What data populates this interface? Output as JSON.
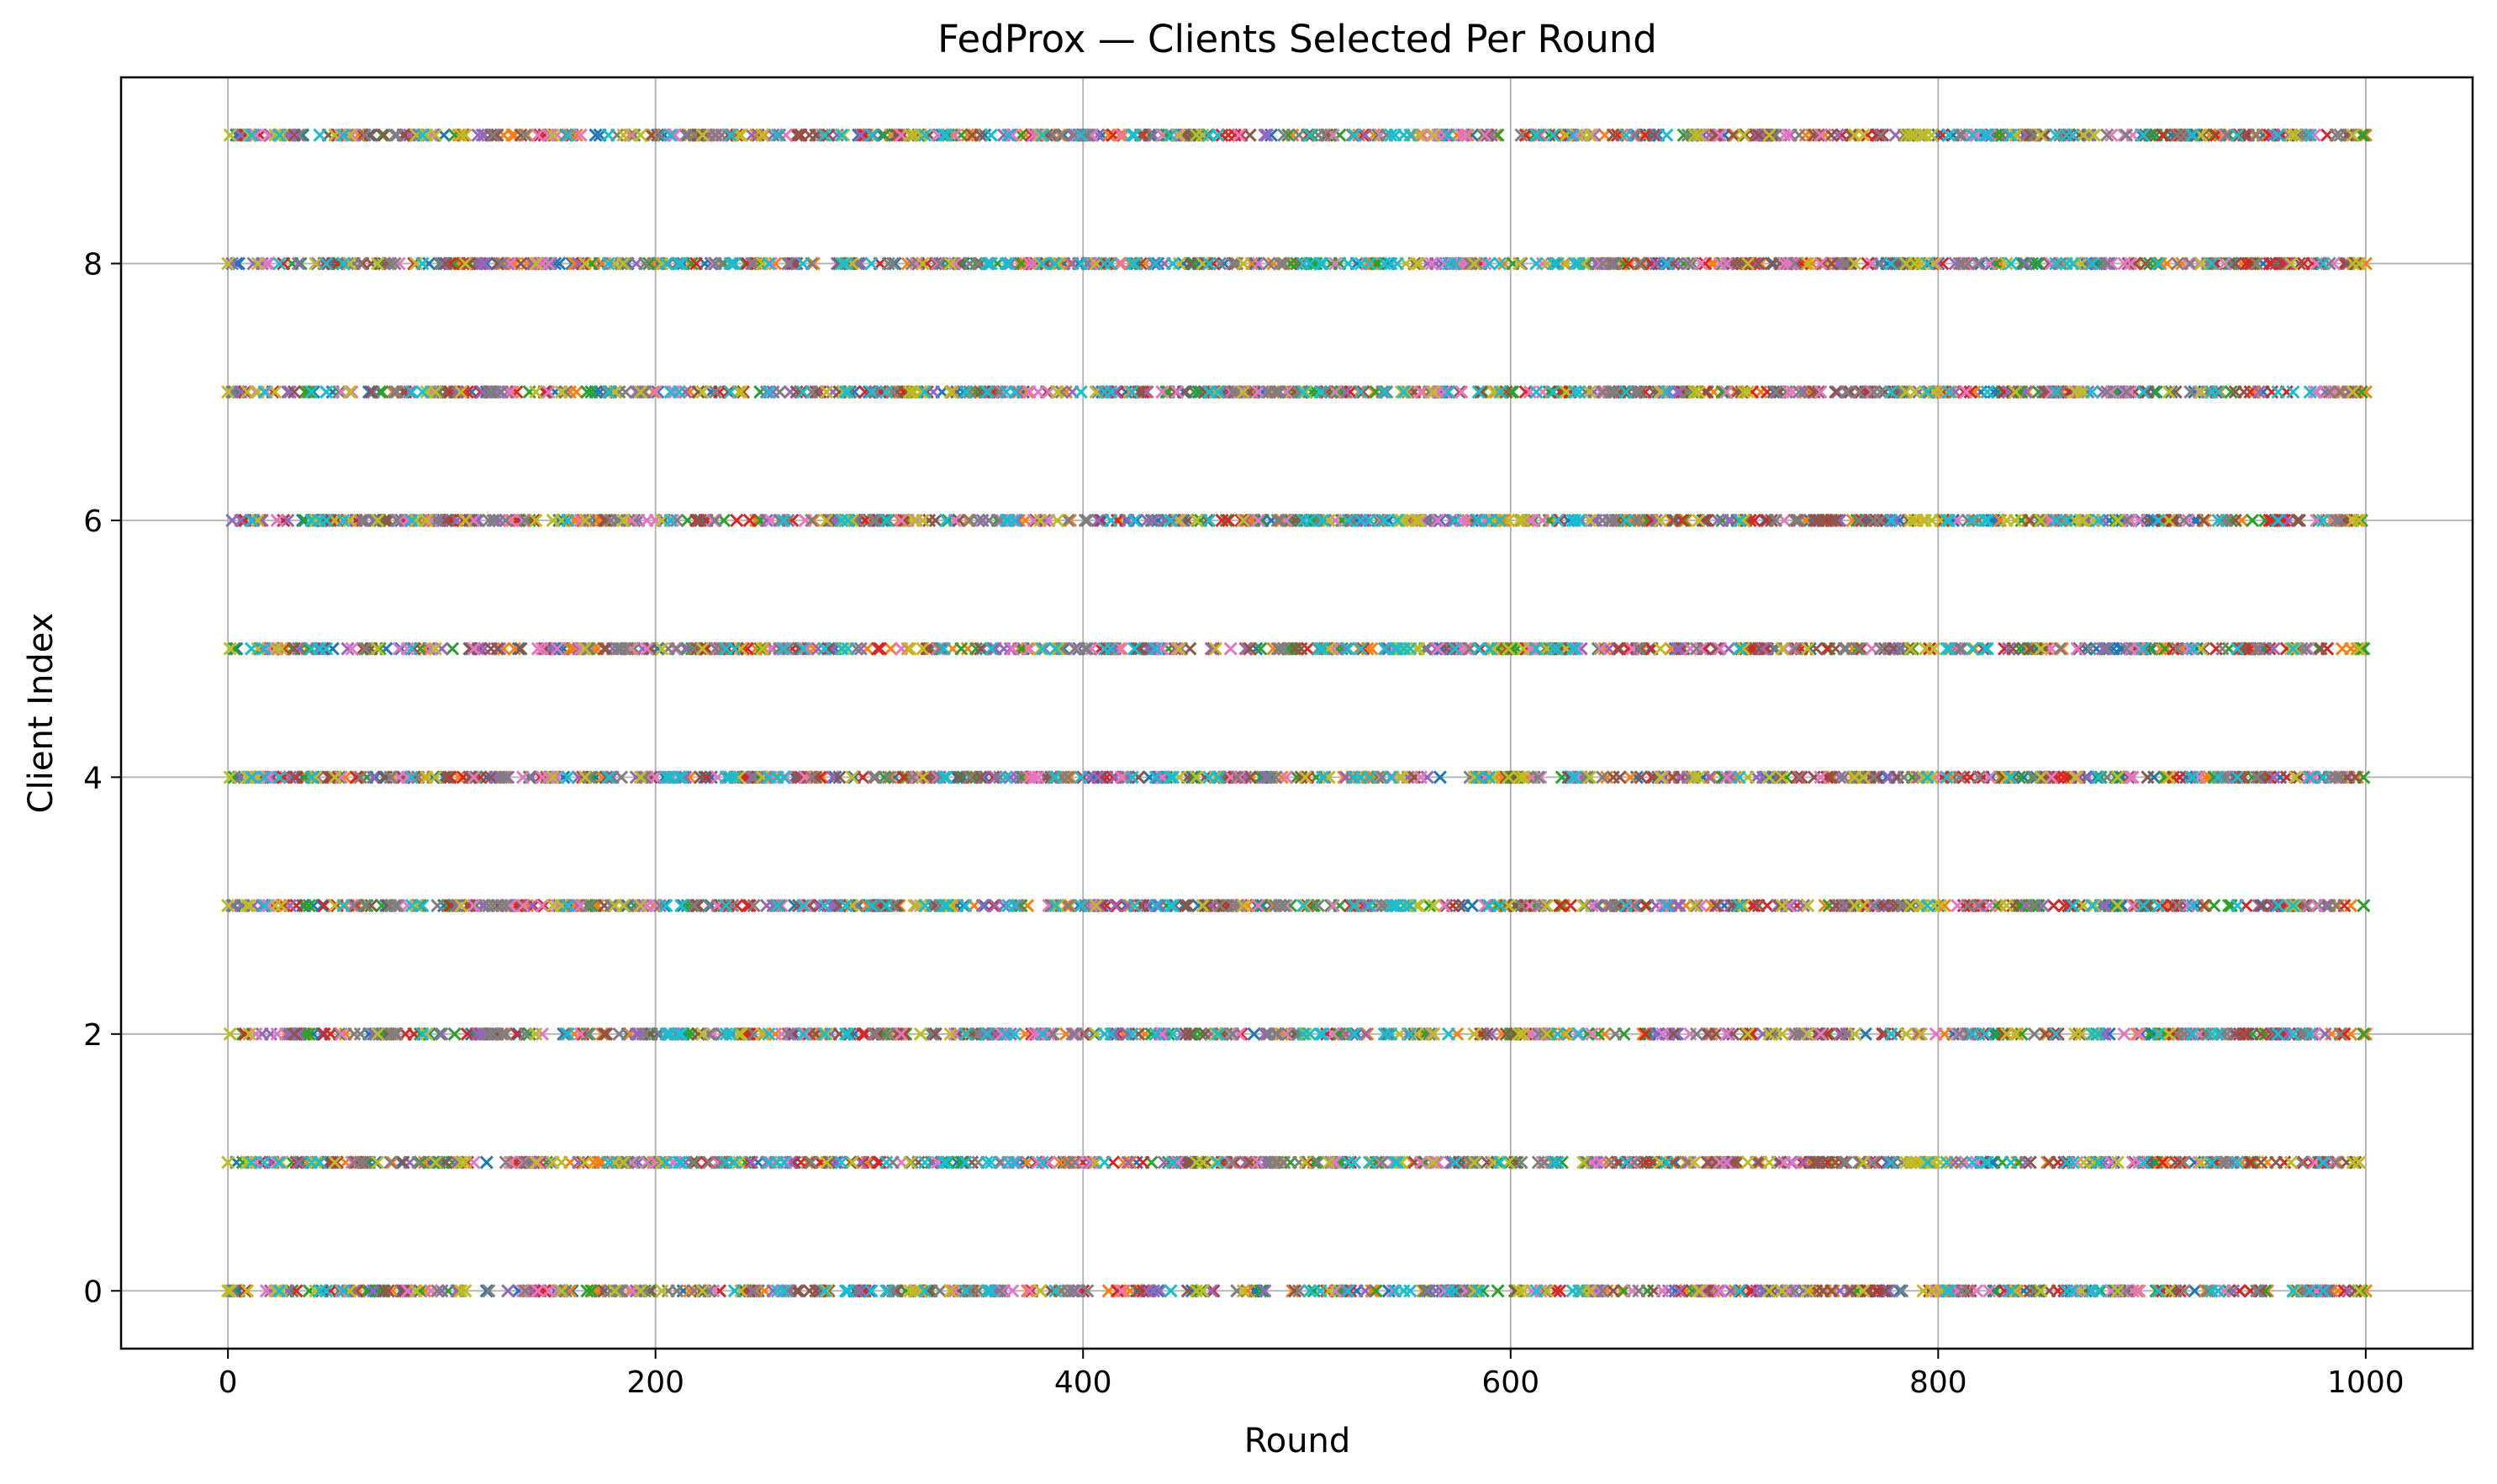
{
  "chart_data": {
    "type": "scatter",
    "title": "FedProx — Clients Selected Per Round",
    "xlabel": "Round",
    "ylabel": "Client Index",
    "xlim": [
      -50,
      1050
    ],
    "ylim": [
      -0.45,
      9.45
    ],
    "xticks": [
      0,
      200,
      400,
      600,
      800,
      1000
    ],
    "xtick_labels": [
      "0",
      "200",
      "400",
      "600",
      "800",
      "1000"
    ],
    "yticks": [
      0,
      2,
      4,
      6,
      8
    ],
    "ytick_labels": [
      "0",
      "2",
      "4",
      "6",
      "8"
    ],
    "grid": true,
    "marker": "x",
    "rounds": {
      "start": 0,
      "end": 1000,
      "step": 1
    },
    "clients": [
      0,
      1,
      2,
      3,
      4,
      5,
      6,
      7,
      8,
      9
    ],
    "clients_per_round": 5,
    "series_note_colors": [
      "#1f77b4",
      "#ff7f0e",
      "#2ca02c",
      "#d62728",
      "#9467bd",
      "#8c564b",
      "#e377c2",
      "#7f7f7f",
      "#bcbd22",
      "#17becf"
    ]
  }
}
